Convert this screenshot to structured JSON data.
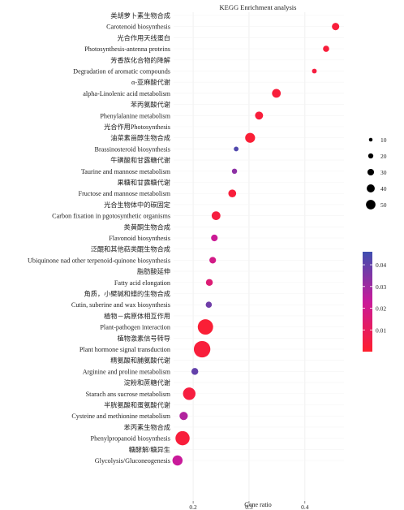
{
  "chart_data": {
    "type": "scatter",
    "title": "KEGG Enrichment analysis",
    "xlabel": "Gene ratio",
    "ylabel": "",
    "xlim": [
      0.165,
      0.47
    ],
    "x_ticks": [
      "0.2",
      "0.3",
      "0.4"
    ],
    "x_tick_values": [
      0.2,
      0.3,
      0.4
    ],
    "grid": true,
    "categories": [
      "类胡萝卜素生物合成",
      "Carotenoid biosynthesis",
      "光合作用天线蛋白",
      "Photosynthesis-antenna proteins",
      "芳香族化合物的降解",
      "Degradation of aromatic compounds",
      "α-亚麻酸代谢",
      "alpha-Linolenic acid metabolism",
      "苯丙氨酸代谢",
      "Phenylalanine metabolism",
      "光合作用Photosynthesis",
      "油菜素甾醇生物合成",
      "Brassinosteroid biosynthesis",
      "牛磺酸和甘露糖代谢",
      "Taurine and mannose metabolism",
      "果糖和甘露糖代谢",
      "Fructose and mannose metabolism",
      "光合生物体中的碳固定",
      "Carbon fixation in pgotosynthetic organisms",
      "类黄酮生物合成",
      "Flavonoid biosynthesis",
      "泛醌和其他萜类醌生物合成",
      "Ubiquinone nad other terpenoid-quinone biosynthesis",
      "脂肪酸延伸",
      "Fatty acid elongation",
      "角质，小檗碱和蜡的生物合成",
      "Cutin, suberine and wax biosynthesis",
      "植物－病原体相互作用",
      "Plant-pathogen interaction",
      "植物激素信号转导",
      "Plant hormone signal transduction",
      "精氨酸和脯氨酸代谢",
      "Arginine and proline metabolism",
      "淀粉和蔗糖代谢",
      "Starach ans sucrose metabolism",
      "半胱氨酸和蛋氨酸代谢",
      "Cysteine and methionine metabolism",
      "苯丙素生物合成",
      "Phenylpropanoid biosynthesis",
      "糖酵解/糖异生",
      "Glycolysis/Gluconeogenesis"
    ],
    "points": [
      {
        "category": "Carotenoid biosynthesis",
        "x": 0.455,
        "count": 16,
        "pvalue": 0.003
      },
      {
        "category": "Photosynthesis-antenna proteins",
        "x": 0.438,
        "count": 11,
        "pvalue": 0.003
      },
      {
        "category": "Degradation of aromatic compounds",
        "x": 0.417,
        "count": 5,
        "pvalue": 0.004
      },
      {
        "category": "alpha-Linolenic acid metabolism",
        "x": 0.349,
        "count": 22,
        "pvalue": 0.003
      },
      {
        "category": "Phenylalanine metabolism",
        "x": 0.318,
        "count": 19,
        "pvalue": 0.003
      },
      {
        "category": "油菜素甾醇生物合成",
        "x": 0.302,
        "count": 27,
        "pvalue": 0.002
      },
      {
        "category": "Brassinosteroid biosynthesis",
        "x": 0.277,
        "count": 5,
        "pvalue": 0.043
      },
      {
        "category": "Taurine and mannose metabolism",
        "x": 0.274,
        "count": 7,
        "pvalue": 0.033
      },
      {
        "category": "Fructose and mannose metabolism",
        "x": 0.27,
        "count": 18,
        "pvalue": 0.003
      },
      {
        "category": "Carbon fixation in pgotosynthetic organisms",
        "x": 0.241,
        "count": 22,
        "pvalue": 0.004
      },
      {
        "category": "Flavonoid biosynthesis",
        "x": 0.238,
        "count": 13,
        "pvalue": 0.022
      },
      {
        "category": "Ubiquinone nad other terpenoid-quinone biosynthesis",
        "x": 0.235,
        "count": 13,
        "pvalue": 0.019
      },
      {
        "category": "Fatty acid elongation",
        "x": 0.229,
        "count": 14,
        "pvalue": 0.015
      },
      {
        "category": "Cutin, suberine and wax biosynthesis",
        "x": 0.228,
        "count": 11,
        "pvalue": 0.038
      },
      {
        "category": "Plant-pathogen interaction",
        "x": 0.222,
        "count": 50,
        "pvalue": 0.002
      },
      {
        "category": "Plant hormone signal transduction",
        "x": 0.216,
        "count": 55,
        "pvalue": 0.003
      },
      {
        "category": "Arginine and proline metabolism",
        "x": 0.203,
        "count": 14,
        "pvalue": 0.04
      },
      {
        "category": "Starach ans sucrose metabolism",
        "x": 0.193,
        "count": 38,
        "pvalue": 0.004
      },
      {
        "category": "Cysteine and methionine metabolism",
        "x": 0.183,
        "count": 20,
        "pvalue": 0.027
      },
      {
        "category": "Phenylpropanoid biosynthesis",
        "x": 0.181,
        "count": 45,
        "pvalue": 0.003
      },
      {
        "category": "Glycolysis/Gluconeogenesis",
        "x": 0.172,
        "count": 28,
        "pvalue": 0.023
      }
    ],
    "size_legend": {
      "values": [
        10,
        20,
        30,
        40,
        50
      ],
      "labels": [
        "10",
        "20",
        "30",
        "40",
        "50"
      ],
      "position": "right"
    },
    "color_legend": {
      "range": [
        0,
        0.046
      ],
      "ticks": [
        0.01,
        0.02,
        0.03,
        0.04
      ],
      "tick_labels": [
        "0.01",
        "0.02",
        "0.03",
        "0.04"
      ],
      "low_color": "#ff1f2d",
      "mid_color": "#c91a9a",
      "high_color": "#3f4fb0",
      "position": "right"
    }
  }
}
